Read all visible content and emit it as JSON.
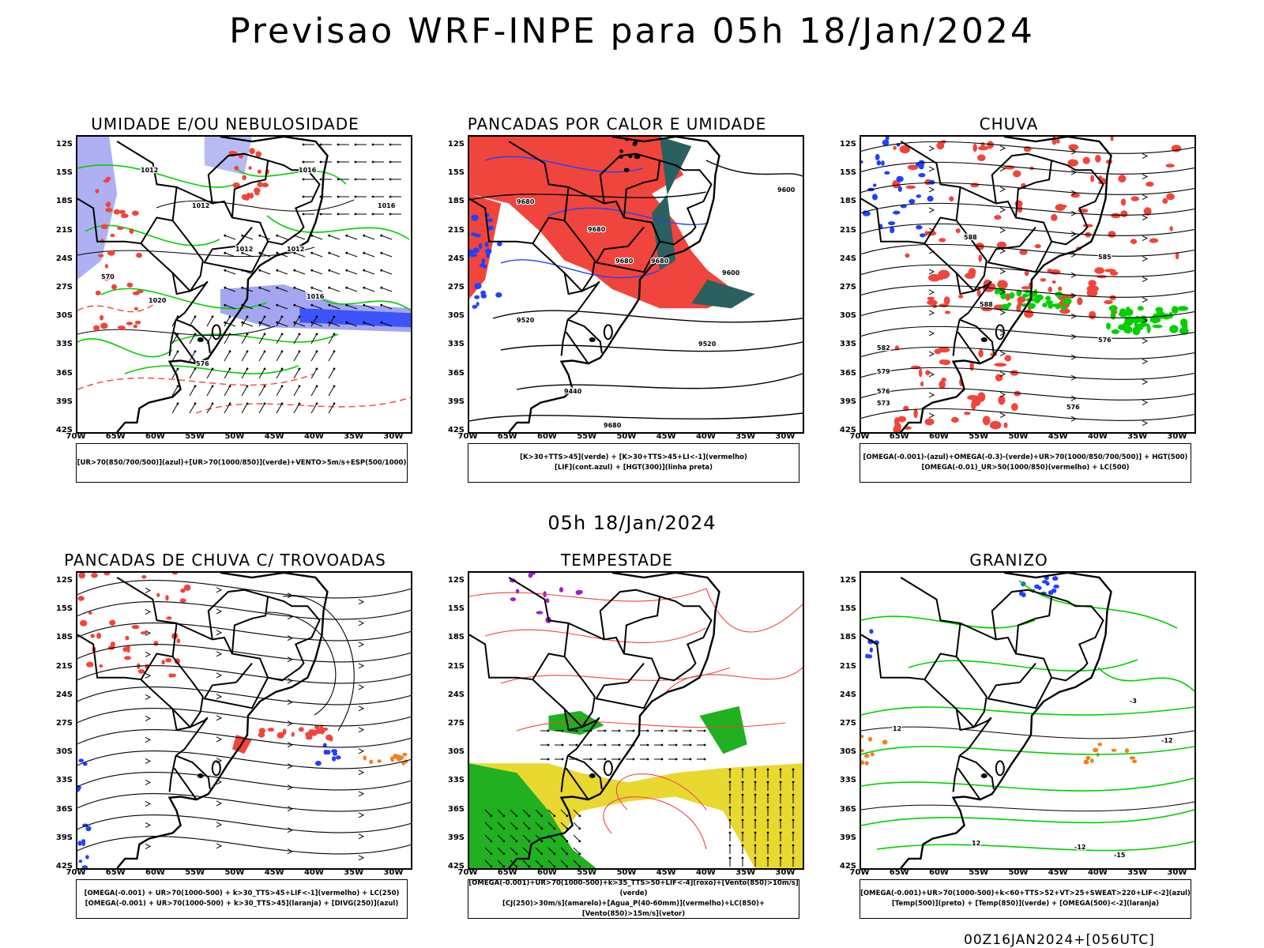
{
  "header": {
    "title": "Previsao WRF-INPE  para 05h 18/Jan/2024"
  },
  "mid_title": "05h 18/Jan/2024",
  "footer": "00Z16JAN2024+[056UTC]",
  "axes": {
    "lat_labels": [
      "12S",
      "15S",
      "18S",
      "21S",
      "24S",
      "27S",
      "30S",
      "33S",
      "36S",
      "39S",
      "42S"
    ],
    "lon_labels": [
      "70W",
      "65W",
      "60W",
      "55W",
      "50W",
      "45W",
      "40W",
      "35W",
      "30W"
    ]
  },
  "colors": {
    "red": "#f0453c",
    "green": "#00d000",
    "blue": "#2040ff",
    "lightblue": "#9a9cf0",
    "darkgreen": "#2a6060",
    "yellow": "#e8d830",
    "orange": "#f08020",
    "purple": "#a020d0",
    "darkgreen_fill": "#20b020"
  },
  "panels": [
    {
      "id": "umidade",
      "title": "UMIDADE E/OU NEBULOSIDADE",
      "caption_lines": [
        "[UR>70(850/700/500)](azul)+[UR>70(1000/850)](verde)+VENTO>5m/s+ESP(500/1000)"
      ],
      "contour_labels": [
        "1012",
        "1016",
        "1012",
        "1012",
        "1012",
        "1016",
        "1020",
        "1016",
        "576",
        "570"
      ]
    },
    {
      "id": "pancadas-calor",
      "title": "PANCADAS POR CALOR E UMIDADE",
      "caption_lines": [
        "[K>30+TTS>45](verde) + [K>30+TTS>45+LI<-1](vermelho)",
        "[LIF](cont.azul) + [HGT(300)](linha preta)"
      ],
      "contour_labels": [
        "9680",
        "9680",
        "9680",
        "9680",
        "9600",
        "9520",
        "9520",
        "9440",
        "9680",
        "9600"
      ]
    },
    {
      "id": "chuva",
      "title": "CHUVA",
      "caption_lines": [
        "[OMEGA(-0.001)-(azul)+OMEGA(-0.3)-(verde)+UR>70(1000/850/700/500)] + HGT(500)",
        "[OMEGA(-0.01)_UR>50(1000/850)(vermelho) + LC(500)"
      ],
      "contour_labels": [
        "588",
        "588",
        "585",
        "582",
        "579",
        "576",
        "576",
        "573",
        "576"
      ]
    },
    {
      "id": "pancadas-trovoadas",
      "title": "PANCADAS DE CHUVA C/ TROVOADAS",
      "caption_lines": [
        "[OMEGA(-0.001) + UR>70(1000-500) + k>30_TTS>45+LIF<-1](vermelho) + LC(250)",
        "[OMEGA(-0.001) + UR>70(1000-500) + k>30_TTS>45](laranja) + [DIVG(250)](azul)"
      ],
      "contour_labels": []
    },
    {
      "id": "tempestade",
      "title": "TEMPESTADE",
      "caption_lines": [
        "[OMEGA(-0.001)+UR>70(1000-500)+k>35_TTS>50+LIF<-4](roxo)+[Vento(850)>10m/s](verde)",
        "[CJ(250)>30m/s](amarelo)+[Agua_P(40-60mm)](vermelho)+LC(850)+[Vento(850)>15m/s](vetor)"
      ],
      "contour_labels": []
    },
    {
      "id": "granizo",
      "title": "GRANIZO",
      "caption_lines": [
        "[OMEGA(-0.001)+UR>70(1000-500)+k<60+TTS>52+VT>25+SWEAT>220+LIF<-2](azul)",
        "[Temp(500)](preto) + [Temp(850)](verde) + [OMEGA(500)<-2](laranja)"
      ],
      "contour_labels": [
        "-3",
        "-12",
        "-12",
        "-15",
        "12",
        "12"
      ]
    }
  ]
}
